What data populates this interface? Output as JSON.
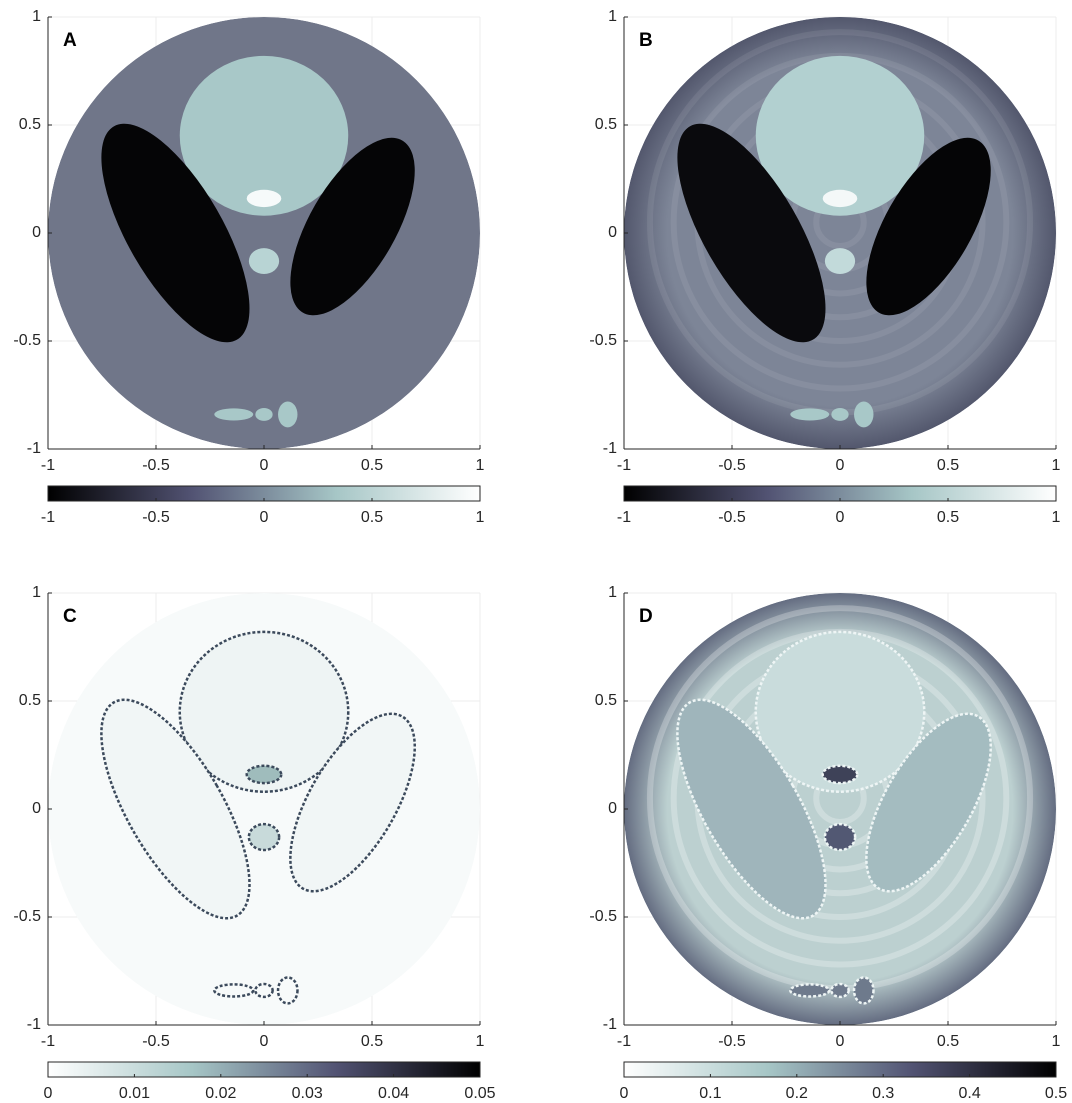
{
  "chart_data": [
    {
      "type": "image",
      "label": "A",
      "xlim": [
        -1,
        1
      ],
      "ylim": [
        -1,
        1
      ],
      "xticks": [
        -1,
        -0.5,
        0,
        0.5,
        1
      ],
      "yticks": [
        -1,
        -0.5,
        0,
        0.5,
        1
      ],
      "grid": true,
      "colorbar": {
        "clim": [
          -1,
          1
        ],
        "ticks": [
          -1,
          -0.5,
          0,
          0.5,
          1
        ],
        "colormap": [
          "#000000",
          "#525373",
          "#a6c6c6",
          "#ffffff"
        ]
      }
    },
    {
      "type": "image",
      "label": "B",
      "xlim": [
        -1,
        1
      ],
      "ylim": [
        -1,
        1
      ],
      "xticks": [
        -1,
        -0.5,
        0,
        0.5,
        1
      ],
      "yticks": [
        -1,
        -0.5,
        0,
        0.5,
        1
      ],
      "grid": true,
      "colorbar": {
        "clim": [
          -1,
          1
        ],
        "ticks": [
          -1,
          -0.5,
          0,
          0.5,
          1
        ],
        "colormap": [
          "#000000",
          "#525373",
          "#a6c6c6",
          "#ffffff"
        ]
      }
    },
    {
      "type": "image",
      "label": "C",
      "xlim": [
        -1,
        1
      ],
      "ylim": [
        -1,
        1
      ],
      "xticks": [
        -1,
        -0.5,
        0,
        0.5,
        1
      ],
      "yticks": [
        -1,
        -0.5,
        0,
        0.5,
        1
      ],
      "grid": true,
      "colorbar": {
        "clim": [
          0,
          0.05
        ],
        "ticks": [
          0,
          0.01,
          0.02,
          0.03,
          0.04,
          0.05
        ],
        "colormap": [
          "#ffffff",
          "#a6c6c6",
          "#525373",
          "#000000"
        ]
      }
    },
    {
      "type": "image",
      "label": "D",
      "xlim": [
        -1,
        1
      ],
      "ylim": [
        -1,
        1
      ],
      "xticks": [
        -1,
        -0.5,
        0,
        0.5,
        1
      ],
      "yticks": [
        -1,
        -0.5,
        0,
        0.5,
        1
      ],
      "grid": true,
      "colorbar": {
        "clim": [
          0,
          0.5
        ],
        "ticks": [
          0,
          0.1,
          0.2,
          0.3,
          0.4,
          0.5
        ],
        "colormap": [
          "#ffffff",
          "#a6c6c6",
          "#525373",
          "#000000"
        ]
      }
    }
  ]
}
